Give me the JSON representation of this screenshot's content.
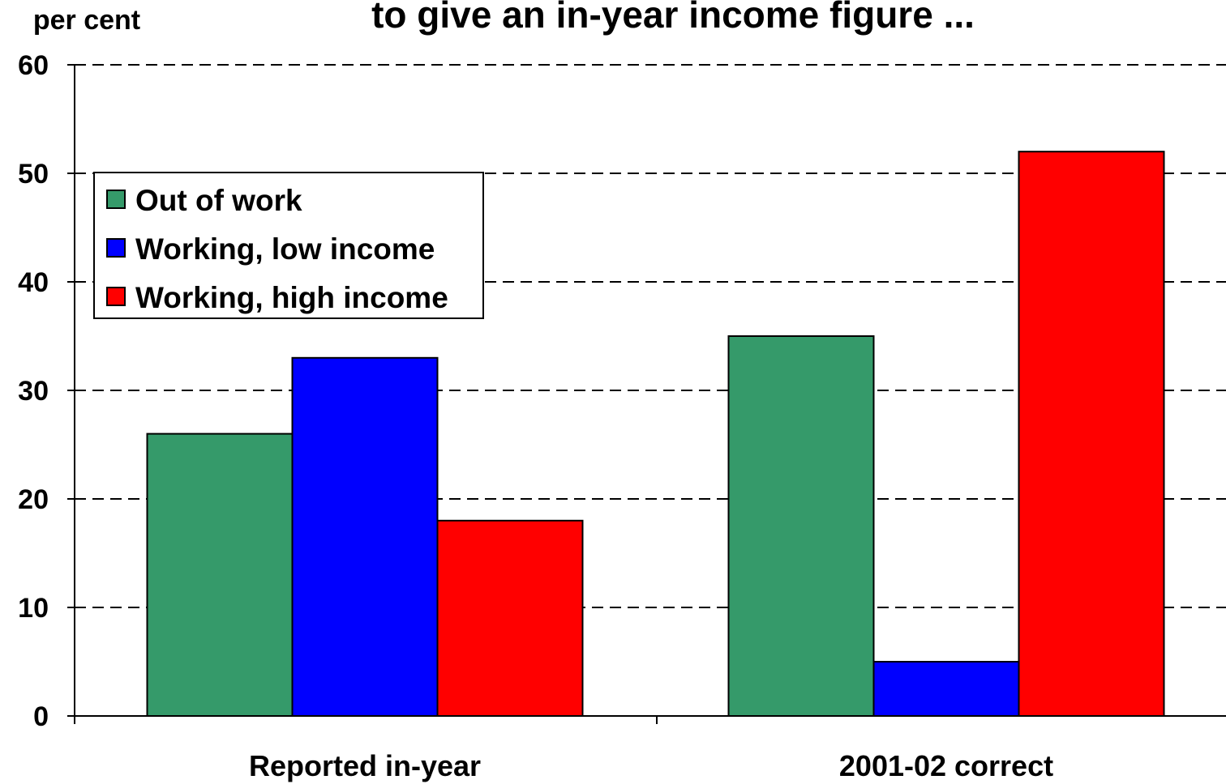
{
  "chart_data": {
    "type": "bar",
    "title": "to give an in-year income figure ...",
    "ylabel": "per cent",
    "xlabel": "",
    "ylim": [
      0,
      60
    ],
    "yticks": [
      0,
      10,
      20,
      30,
      40,
      50,
      60
    ],
    "grid": true,
    "legend_position": "top-left",
    "categories": [
      "Reported in-year",
      "2001-02 correct"
    ],
    "series": [
      {
        "name": "Out of work",
        "color": "#359a6a",
        "values": [
          26,
          35
        ]
      },
      {
        "name": "Working, low income",
        "color": "#0000ff",
        "values": [
          33,
          5
        ]
      },
      {
        "name": "Working, high income",
        "color": "#ff0000",
        "values": [
          18,
          52
        ]
      }
    ]
  }
}
